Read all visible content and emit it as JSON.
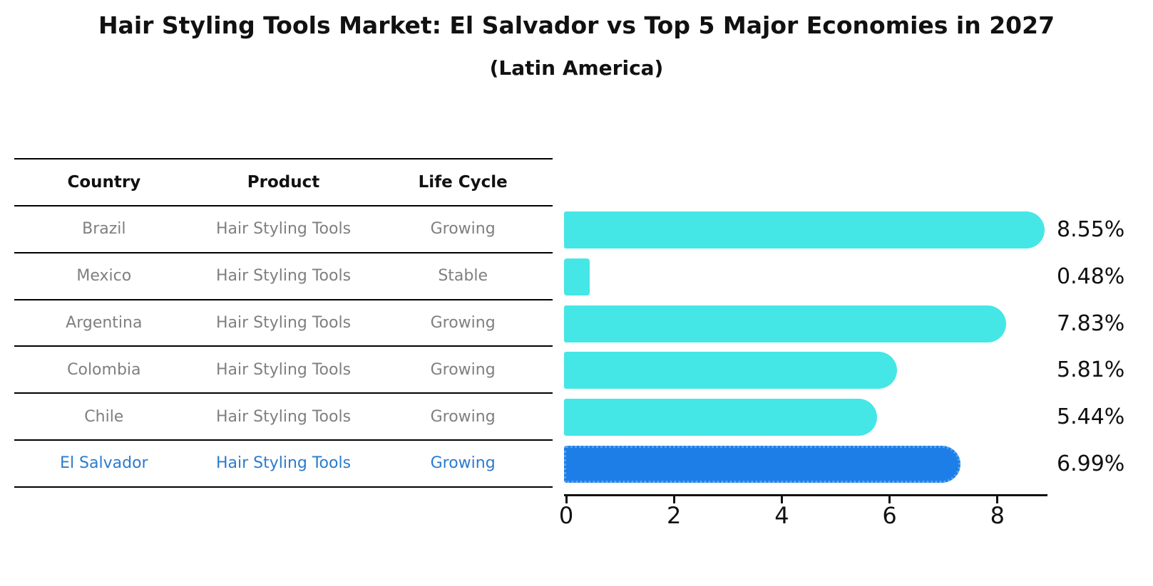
{
  "title": "Hair Styling Tools Market: El Salvador vs Top 5 Major Economies in 2027",
  "subtitle": "(Latin America)",
  "table": {
    "headers": [
      "Country",
      "Product",
      "Life Cycle"
    ],
    "rows": [
      {
        "country": "Brazil",
        "product": "Hair Styling Tools",
        "life_cycle": "Growing",
        "highlight": false
      },
      {
        "country": "Mexico",
        "product": "Hair Styling Tools",
        "life_cycle": "Stable",
        "highlight": false
      },
      {
        "country": "Argentina",
        "product": "Hair Styling Tools",
        "life_cycle": "Growing",
        "highlight": false
      },
      {
        "country": "Colombia",
        "product": "Hair Styling Tools",
        "life_cycle": "Growing",
        "highlight": false
      },
      {
        "country": "Chile",
        "product": "Hair Styling Tools",
        "life_cycle": "Growing",
        "highlight": false
      },
      {
        "country": "El Salvador",
        "product": "Hair Styling Tools",
        "life_cycle": "Growing",
        "highlight": true
      }
    ]
  },
  "chart_data": {
    "type": "bar",
    "orientation": "horizontal",
    "title": "Hair Styling Tools Market: El Salvador vs Top 5 Major Economies in 2027",
    "subtitle": "(Latin America)",
    "categories": [
      "Brazil",
      "Mexico",
      "Argentina",
      "Colombia",
      "Chile",
      "El Salvador"
    ],
    "values": [
      8.55,
      0.48,
      7.83,
      5.81,
      5.44,
      6.99
    ],
    "value_labels": [
      "8.55%",
      "0.48%",
      "7.83%",
      "5.81%",
      "5.44%",
      "6.99%"
    ],
    "xlabel": "",
    "ylabel": "",
    "x_ticks": [
      0,
      2,
      4,
      6,
      8
    ],
    "xlim": [
      0,
      8.93
    ],
    "grid": false,
    "legend": false,
    "highlight_index": 5
  },
  "colors": {
    "bar": "#45E6E6",
    "highlight_bar": "#1E7EE8",
    "highlight_bar_border": "#53A4F0",
    "highlight_text": "#2B7BCE",
    "row_text": "#7F7F7F",
    "axis": "#111111"
  }
}
